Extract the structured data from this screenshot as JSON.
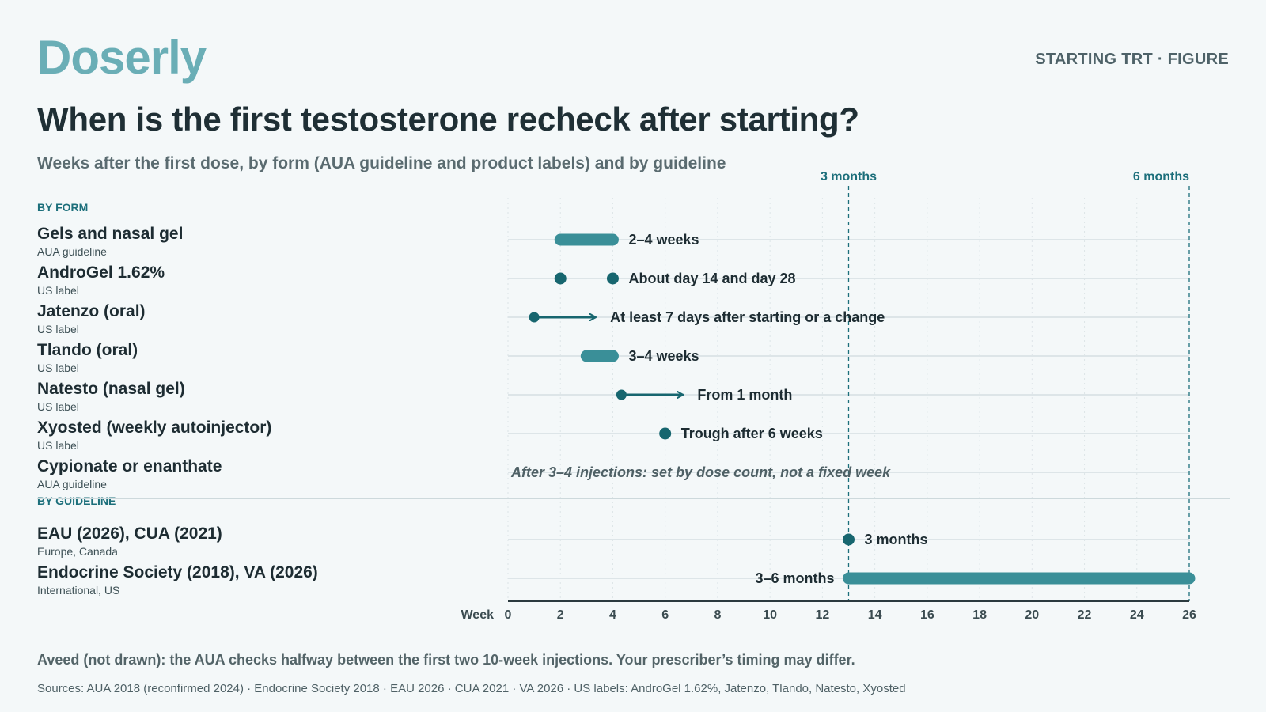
{
  "header": {
    "logo": "Doserly",
    "tag": "STARTING TRT · FIGURE",
    "title": "When is the first testosterone recheck after starting?",
    "subtitle": "Weeks after the first dose, by form (AUA guideline and product labels) and by guideline"
  },
  "sections": {
    "by_form": "BY FORM",
    "by_guideline": "BY GUIDELINE"
  },
  "footer": {
    "note": "Aveed (not drawn): the AUA checks halfway between the first two 10-week injections. Your prescriber’s timing may differ.",
    "sources": "Sources: AUA 2018 (reconfirmed 2024) · Endocrine Society 2018 · EAU 2026 · CUA 2021 · VA 2026 · US labels: AndroGel 1.62%, Jatenzo, Tlando, Natesto, Xyosted"
  },
  "colors": {
    "bar": "#3a8f98",
    "marker": "#17666f",
    "accent": "#1c6f7b",
    "gridline": "#dde5e8",
    "axis": "#2b3a3f"
  },
  "chart_data": {
    "type": "range-timeline",
    "xlabel": "Week",
    "xlim": [
      0,
      26
    ],
    "xticks": [
      0,
      2,
      4,
      6,
      8,
      10,
      12,
      14,
      16,
      18,
      20,
      22,
      24,
      26
    ],
    "grid": true,
    "reference_lines": [
      {
        "x": 13,
        "label": "3 months"
      },
      {
        "x": 26,
        "label": "6 months"
      }
    ],
    "rows": [
      {
        "name": "Gels and nasal gel",
        "source": "AUA guideline",
        "group": "form",
        "kind": "range",
        "start": 2,
        "end": 4,
        "annotation": "2–4 weeks"
      },
      {
        "name": "AndroGel 1.62%",
        "source": "US label",
        "group": "form",
        "kind": "points",
        "points": [
          2,
          4
        ],
        "annotation": "About day 14 and day 28"
      },
      {
        "name": "Jatenzo (oral)",
        "source": "US label",
        "group": "form",
        "kind": "arrow",
        "start": 1,
        "annotation": "At least 7 days after starting or a change"
      },
      {
        "name": "Tlando (oral)",
        "source": "US label",
        "group": "form",
        "kind": "range",
        "start": 3,
        "end": 4,
        "annotation": "3–4 weeks"
      },
      {
        "name": "Natesto (nasal gel)",
        "source": "US label",
        "group": "form",
        "kind": "arrow",
        "start": 4.33,
        "annotation": "From 1 month"
      },
      {
        "name": "Xyosted (weekly autoinjector)",
        "source": "US label",
        "group": "form",
        "kind": "points",
        "points": [
          6
        ],
        "annotation": "Trough after 6 weeks"
      },
      {
        "name": "Cypionate or enanthate",
        "source": "AUA guideline",
        "group": "form",
        "kind": "note",
        "annotation": "After 3–4 injections: set by dose count, not a fixed week"
      },
      {
        "name": "EAU (2026), CUA (2021)",
        "source": "Europe, Canada",
        "group": "guideline",
        "kind": "points",
        "points": [
          13
        ],
        "annotation": "3 months"
      },
      {
        "name": "Endocrine Society (2018), VA (2026)",
        "source": "International, US",
        "group": "guideline",
        "kind": "range",
        "start": 13,
        "end": 26,
        "annotation": "3–6 months"
      }
    ]
  }
}
